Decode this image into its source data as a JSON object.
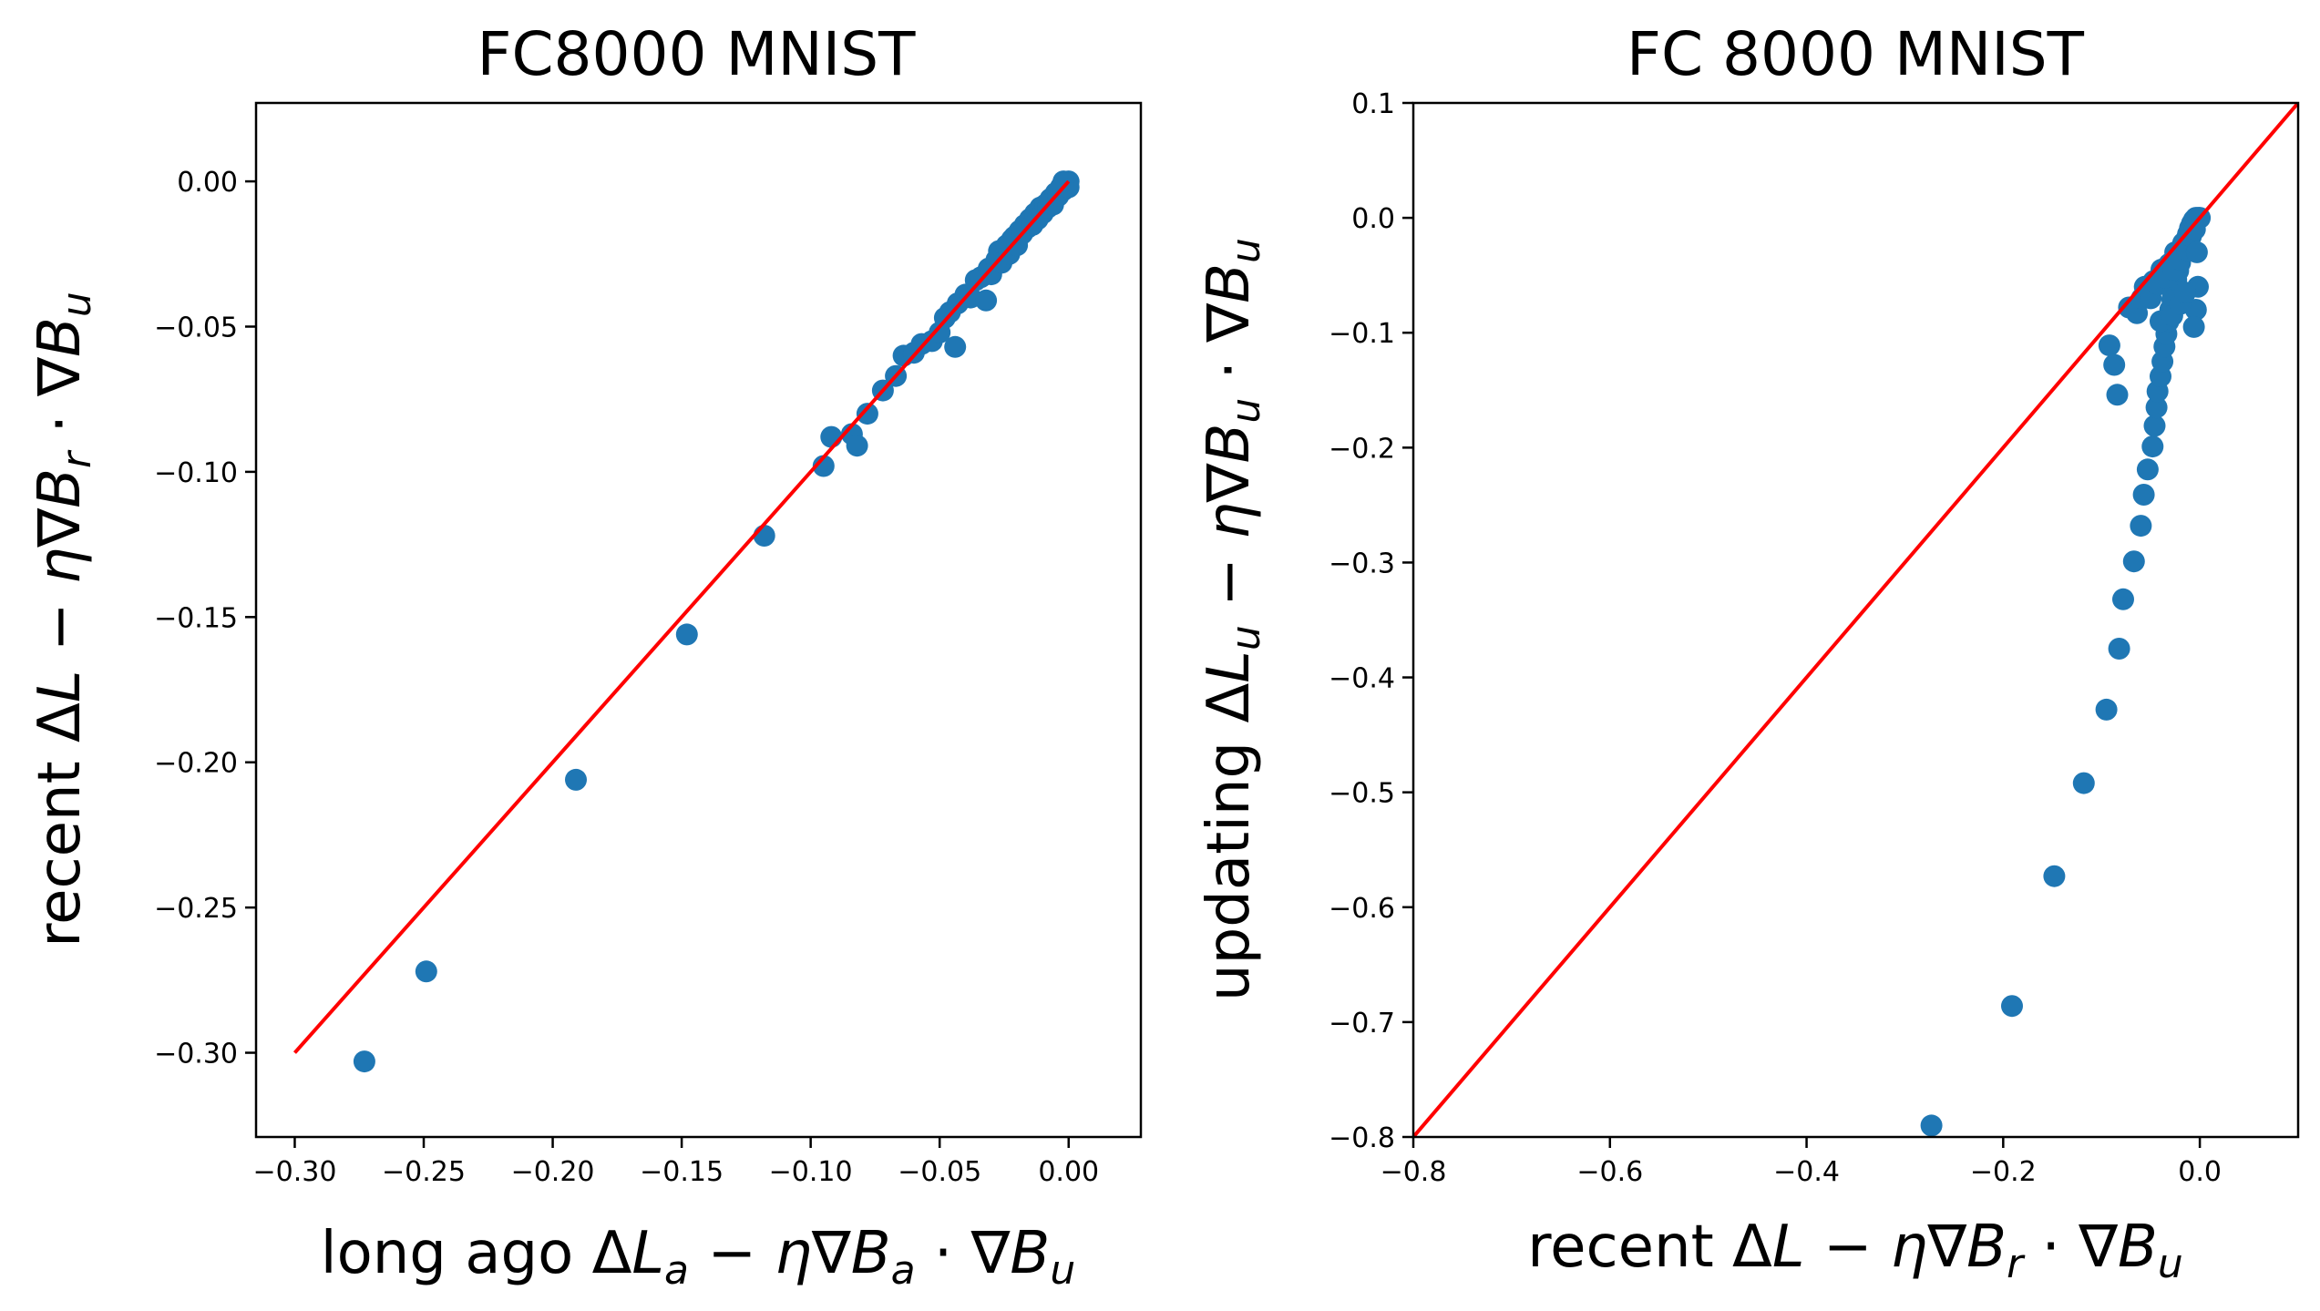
{
  "chart_data": [
    {
      "type": "scatter",
      "title": "FC8000 MNIST",
      "xlabel": "long ago ΔL_a − η∇B_a · ∇B_u",
      "ylabel": "recent ΔL − η∇B_r · ∇B_u",
      "xlim": [
        -0.315,
        0.028
      ],
      "ylim": [
        -0.329,
        0.027
      ],
      "xticks": [
        -0.3,
        -0.25,
        -0.2,
        -0.15,
        -0.1,
        -0.05,
        0.0
      ],
      "xtick_labels": [
        "−0.30",
        "−0.25",
        "−0.20",
        "−0.15",
        "−0.10",
        "−0.05",
        "0.00"
      ],
      "yticks": [
        0.0,
        -0.05,
        -0.1,
        -0.15,
        -0.2,
        -0.25,
        -0.3
      ],
      "ytick_labels": [
        "0.00",
        "−0.05",
        "−0.10",
        "−0.15",
        "−0.20",
        "−0.25",
        "−0.30"
      ],
      "reference_line": {
        "x": [
          -0.3,
          0.0
        ],
        "y": [
          -0.3,
          0.0
        ],
        "color": "#ff0000"
      },
      "marker_color": "#1f77b4",
      "points": [
        [
          -0.273,
          -0.303
        ],
        [
          -0.249,
          -0.272
        ],
        [
          -0.191,
          -0.206
        ],
        [
          -0.148,
          -0.156
        ],
        [
          -0.118,
          -0.122
        ],
        [
          -0.095,
          -0.098
        ],
        [
          -0.092,
          -0.088
        ],
        [
          -0.084,
          -0.087
        ],
        [
          -0.082,
          -0.091
        ],
        [
          -0.078,
          -0.08
        ],
        [
          -0.072,
          -0.072
        ],
        [
          -0.067,
          -0.067
        ],
        [
          -0.064,
          -0.06
        ],
        [
          -0.06,
          -0.059
        ],
        [
          -0.057,
          -0.056
        ],
        [
          -0.053,
          -0.055
        ],
        [
          -0.05,
          -0.052
        ],
        [
          -0.048,
          -0.047
        ],
        [
          -0.046,
          -0.045
        ],
        [
          -0.044,
          -0.057
        ],
        [
          -0.043,
          -0.042
        ],
        [
          -0.04,
          -0.039
        ],
        [
          -0.038,
          -0.04
        ],
        [
          -0.036,
          -0.034
        ],
        [
          -0.034,
          -0.033
        ],
        [
          -0.032,
          -0.041
        ],
        [
          -0.031,
          -0.03
        ],
        [
          -0.03,
          -0.032
        ],
        [
          -0.028,
          -0.027
        ],
        [
          -0.027,
          -0.024
        ],
        [
          -0.026,
          -0.028
        ],
        [
          -0.024,
          -0.022
        ],
        [
          -0.023,
          -0.025
        ],
        [
          -0.022,
          -0.02
        ],
        [
          -0.021,
          -0.019
        ],
        [
          -0.02,
          -0.022
        ],
        [
          -0.019,
          -0.017
        ],
        [
          -0.018,
          -0.018
        ],
        [
          -0.017,
          -0.015
        ],
        [
          -0.016,
          -0.016
        ],
        [
          -0.015,
          -0.013
        ],
        [
          -0.014,
          -0.015
        ],
        [
          -0.013,
          -0.011
        ],
        [
          -0.012,
          -0.013
        ],
        [
          -0.011,
          -0.009
        ],
        [
          -0.01,
          -0.011
        ],
        [
          -0.009,
          -0.008
        ],
        [
          -0.008,
          -0.009
        ],
        [
          -0.007,
          -0.006
        ],
        [
          -0.006,
          -0.008
        ],
        [
          -0.005,
          -0.004
        ],
        [
          -0.004,
          -0.005
        ],
        [
          -0.003,
          -0.002
        ],
        [
          -0.002,
          -0.003
        ],
        [
          -0.001,
          -0.001
        ],
        [
          0.0,
          0.0
        ],
        [
          0.0,
          -0.002
        ],
        [
          -0.002,
          0.0
        ]
      ]
    },
    {
      "type": "scatter",
      "title": "FC 8000 MNIST",
      "xlabel": "recent ΔL − η∇B_r · ∇B_u",
      "ylabel": "updating ΔL_u − η∇B_u · ∇B_u",
      "xlim": [
        -0.8,
        0.1
      ],
      "ylim": [
        -0.8,
        0.1
      ],
      "xticks": [
        -0.8,
        -0.6,
        -0.4,
        -0.2,
        0.0
      ],
      "xtick_labels": [
        "−0.8",
        "−0.6",
        "−0.4",
        "−0.2",
        "0.0"
      ],
      "yticks": [
        0.1,
        0.0,
        -0.1,
        -0.2,
        -0.3,
        -0.4,
        -0.5,
        -0.6,
        -0.7,
        -0.8
      ],
      "ytick_labels": [
        "0.1",
        "0.0",
        "−0.1",
        "−0.2",
        "−0.3",
        "−0.4",
        "−0.5",
        "−0.6",
        "−0.7",
        "−0.8"
      ],
      "reference_line": {
        "x": [
          -0.8,
          0.1
        ],
        "y": [
          -0.8,
          0.1
        ],
        "color": "#ff0000"
      },
      "marker_color": "#1f77b4",
      "points": [
        [
          -0.273,
          -0.79
        ],
        [
          -0.191,
          -0.686
        ],
        [
          -0.148,
          -0.573
        ],
        [
          -0.118,
          -0.492
        ],
        [
          -0.095,
          -0.428
        ],
        [
          -0.082,
          -0.375
        ],
        [
          -0.078,
          -0.332
        ],
        [
          -0.067,
          -0.299
        ],
        [
          -0.06,
          -0.268
        ],
        [
          -0.057,
          -0.241
        ],
        [
          -0.053,
          -0.219
        ],
        [
          -0.048,
          -0.199
        ],
        [
          -0.046,
          -0.181
        ],
        [
          -0.044,
          -0.165
        ],
        [
          -0.043,
          -0.151
        ],
        [
          -0.04,
          -0.138
        ],
        [
          -0.038,
          -0.125
        ],
        [
          -0.036,
          -0.112
        ],
        [
          -0.034,
          -0.101
        ],
        [
          -0.032,
          -0.09
        ],
        [
          -0.03,
          -0.08
        ],
        [
          -0.028,
          -0.071
        ],
        [
          -0.026,
          -0.062
        ],
        [
          -0.024,
          -0.054
        ],
        [
          -0.022,
          -0.046
        ],
        [
          -0.02,
          -0.039
        ],
        [
          -0.018,
          -0.032
        ],
        [
          -0.016,
          -0.025
        ],
        [
          -0.014,
          -0.019
        ],
        [
          -0.012,
          -0.014
        ],
        [
          -0.01,
          -0.009
        ],
        [
          -0.008,
          -0.005
        ],
        [
          -0.006,
          -0.002
        ],
        [
          -0.004,
          0.0
        ],
        [
          -0.002,
          0.0
        ],
        [
          0.0,
          0.0
        ],
        [
          -0.092,
          -0.111
        ],
        [
          -0.087,
          -0.128
        ],
        [
          -0.084,
          -0.154
        ],
        [
          -0.072,
          -0.078
        ],
        [
          -0.064,
          -0.083
        ],
        [
          -0.059,
          -0.07
        ],
        [
          -0.056,
          -0.06
        ],
        [
          -0.05,
          -0.07
        ],
        [
          -0.047,
          -0.055
        ],
        [
          -0.042,
          -0.058
        ],
        [
          -0.039,
          -0.045
        ],
        [
          -0.035,
          -0.052
        ],
        [
          -0.031,
          -0.04
        ],
        [
          -0.027,
          -0.045
        ],
        [
          -0.025,
          -0.03
        ],
        [
          -0.021,
          -0.036
        ],
        [
          -0.017,
          -0.022
        ],
        [
          -0.013,
          -0.028
        ],
        [
          -0.009,
          -0.016
        ],
        [
          -0.005,
          -0.01
        ],
        [
          -0.003,
          -0.03
        ],
        [
          -0.002,
          -0.06
        ],
        [
          -0.004,
          -0.08
        ],
        [
          -0.006,
          -0.095
        ],
        [
          -0.04,
          -0.09
        ],
        [
          -0.028,
          -0.085
        ],
        [
          -0.02,
          -0.075
        ],
        [
          -0.015,
          -0.065
        ]
      ]
    }
  ]
}
